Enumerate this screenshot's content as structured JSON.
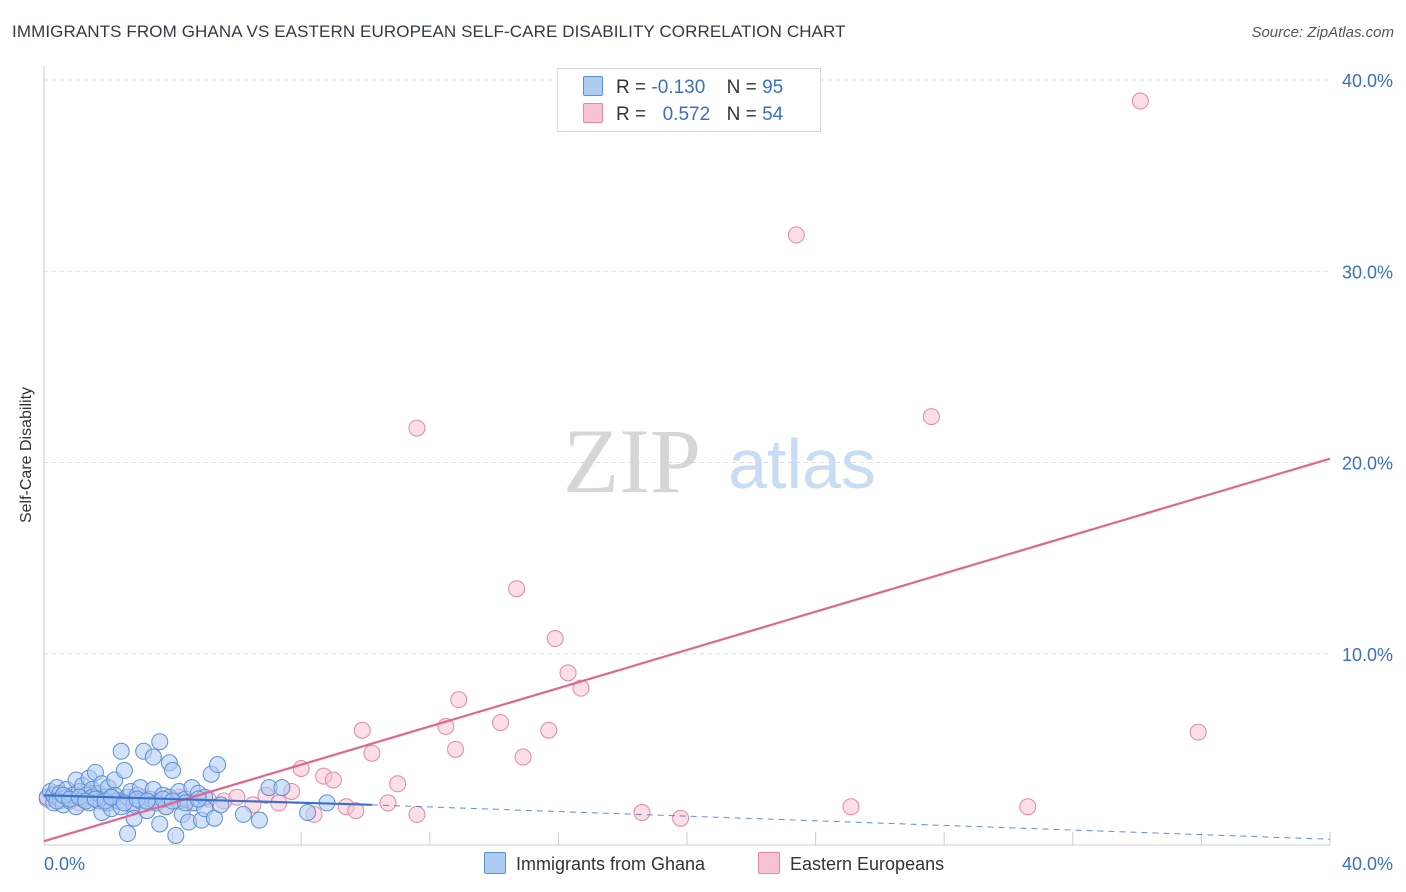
{
  "title": "IMMIGRANTS FROM GHANA VS EASTERN EUROPEAN SELF-CARE DISABILITY CORRELATION CHART",
  "source": "Source: ZipAtlas.com",
  "watermark": {
    "zip": "ZIP",
    "atlas": "atlas"
  },
  "colors": {
    "blue_fill": "#aecbf2",
    "blue_stroke": "#5b8fd6",
    "blue_line": "#3a72cc",
    "pink_fill": "#f7c3d2",
    "pink_stroke": "#e08aa6",
    "pink_line": "#e0668f",
    "axis_text": "#3a6fc8",
    "grid": "#dddddd"
  },
  "legend": {
    "r_label": "R =",
    "n_label": "N =",
    "rows": [
      {
        "r_value": "-0.130",
        "n_value": "95",
        "series": "blue"
      },
      {
        "r_value": "0.572",
        "n_value": "54",
        "series": "pink"
      }
    ]
  },
  "bottom_legend": {
    "ghana": "Immigrants from Ghana",
    "eastern": "Eastern Europeans"
  },
  "chart_data": {
    "type": "scatter",
    "title": "IMMIGRANTS FROM GHANA VS EASTERN EUROPEAN SELF-CARE DISABILITY CORRELATION CHART",
    "xlabel": "",
    "ylabel": "Self-Care Disability",
    "xlim": [
      0,
      40
    ],
    "ylim": [
      0,
      40
    ],
    "x_tick_labels": [
      "0.0%",
      "40.0%"
    ],
    "y_ticks": [
      10,
      20,
      30,
      40
    ],
    "y_tick_labels": [
      "10.0%",
      "20.0%",
      "30.0%",
      "40.0%"
    ],
    "grid": true,
    "series": [
      {
        "name": "Immigrants from Ghana",
        "color": "blue",
        "r": -0.13,
        "n": 95,
        "trend": {
          "x0": 0.0,
          "y0": 2.6,
          "x1": 10.2,
          "y1": 2.1,
          "dashed_to_x": 40.0,
          "dashed_to_y": 0.3
        },
        "points": [
          [
            0.1,
            2.5
          ],
          [
            0.2,
            2.8
          ],
          [
            0.3,
            2.2
          ],
          [
            0.3,
            2.6
          ],
          [
            0.4,
            3.0
          ],
          [
            0.5,
            2.4
          ],
          [
            0.5,
            2.7
          ],
          [
            0.6,
            2.1
          ],
          [
            0.7,
            2.9
          ],
          [
            0.7,
            2.5
          ],
          [
            0.8,
            2.3
          ],
          [
            0.9,
            2.6
          ],
          [
            1.0,
            3.4
          ],
          [
            1.0,
            2.0
          ],
          [
            1.1,
            2.8
          ],
          [
            1.2,
            2.4
          ],
          [
            1.2,
            3.1
          ],
          [
            1.3,
            2.6
          ],
          [
            1.4,
            2.2
          ],
          [
            1.4,
            3.5
          ],
          [
            1.5,
            2.9
          ],
          [
            1.5,
            2.5
          ],
          [
            1.6,
            3.8
          ],
          [
            1.7,
            2.3
          ],
          [
            1.7,
            2.7
          ],
          [
            1.8,
            3.2
          ],
          [
            1.8,
            1.7
          ],
          [
            1.9,
            2.5
          ],
          [
            2.0,
            3.0
          ],
          [
            2.0,
            2.2
          ],
          [
            2.1,
            1.9
          ],
          [
            2.2,
            2.6
          ],
          [
            2.2,
            3.4
          ],
          [
            2.3,
            2.3
          ],
          [
            2.4,
            4.9
          ],
          [
            2.4,
            2.0
          ],
          [
            2.5,
            3.9
          ],
          [
            2.6,
            2.5
          ],
          [
            2.6,
            0.6
          ],
          [
            2.7,
            2.8
          ],
          [
            2.8,
            2.1
          ],
          [
            2.8,
            1.4
          ],
          [
            2.9,
            2.6
          ],
          [
            3.0,
            3.0
          ],
          [
            3.0,
            2.3
          ],
          [
            3.1,
            4.9
          ],
          [
            3.2,
            1.8
          ],
          [
            3.3,
            2.4
          ],
          [
            3.4,
            4.6
          ],
          [
            3.4,
            2.9
          ],
          [
            3.5,
            2.2
          ],
          [
            3.6,
            5.4
          ],
          [
            3.6,
            1.1
          ],
          [
            3.7,
            2.6
          ],
          [
            3.8,
            2.0
          ],
          [
            3.9,
            4.3
          ],
          [
            3.9,
            2.5
          ],
          [
            4.0,
            3.9
          ],
          [
            4.1,
            0.5
          ],
          [
            4.2,
            2.3
          ],
          [
            4.2,
            2.8
          ],
          [
            4.3,
            1.6
          ],
          [
            4.4,
            2.4
          ],
          [
            4.5,
            1.2
          ],
          [
            4.6,
            3.0
          ],
          [
            4.7,
            2.2
          ],
          [
            4.8,
            2.7
          ],
          [
            4.9,
            1.3
          ],
          [
            5.0,
            2.5
          ],
          [
            5.0,
            1.9
          ],
          [
            5.2,
            3.7
          ],
          [
            5.3,
            1.4
          ],
          [
            5.4,
            4.2
          ],
          [
            5.5,
            2.1
          ],
          [
            6.2,
            1.6
          ],
          [
            6.7,
            1.3
          ],
          [
            7.0,
            3.0
          ],
          [
            7.4,
            3.0
          ],
          [
            8.2,
            1.7
          ],
          [
            8.8,
            2.2
          ],
          [
            0.4,
            2.3
          ],
          [
            0.6,
            2.6
          ],
          [
            0.8,
            2.4
          ],
          [
            1.1,
            2.5
          ],
          [
            1.3,
            2.3
          ],
          [
            1.6,
            2.4
          ],
          [
            1.9,
            2.3
          ],
          [
            2.1,
            2.5
          ],
          [
            2.5,
            2.2
          ],
          [
            2.9,
            2.4
          ],
          [
            3.2,
            2.3
          ],
          [
            3.7,
            2.4
          ],
          [
            4.0,
            2.3
          ],
          [
            4.4,
            2.2
          ],
          [
            4.8,
            2.4
          ]
        ]
      },
      {
        "name": "Eastern Europeans",
        "color": "pink",
        "r": 0.572,
        "n": 54,
        "trend": {
          "x0": 0.0,
          "y0": 0.2,
          "x1": 40.0,
          "y1": 20.2
        },
        "points": [
          [
            0.1,
            2.4
          ],
          [
            0.3,
            2.7
          ],
          [
            0.5,
            2.3
          ],
          [
            0.7,
            2.5
          ],
          [
            0.9,
            2.6
          ],
          [
            1.1,
            2.2
          ],
          [
            1.3,
            2.4
          ],
          [
            1.6,
            2.7
          ],
          [
            1.9,
            2.2
          ],
          [
            2.2,
            2.4
          ],
          [
            2.5,
            2.3
          ],
          [
            2.8,
            2.2
          ],
          [
            3.1,
            2.5
          ],
          [
            3.5,
            2.3
          ],
          [
            3.8,
            2.0
          ],
          [
            4.2,
            2.5
          ],
          [
            4.6,
            2.2
          ],
          [
            5.1,
            2.4
          ],
          [
            5.6,
            2.3
          ],
          [
            6.0,
            2.5
          ],
          [
            6.5,
            2.1
          ],
          [
            6.9,
            2.6
          ],
          [
            7.3,
            2.2
          ],
          [
            7.7,
            2.8
          ],
          [
            8.0,
            4.0
          ],
          [
            8.4,
            1.6
          ],
          [
            8.7,
            3.6
          ],
          [
            9.0,
            3.4
          ],
          [
            9.4,
            2.0
          ],
          [
            9.7,
            1.8
          ],
          [
            9.9,
            6.0
          ],
          [
            10.2,
            4.8
          ],
          [
            10.7,
            2.2
          ],
          [
            11.0,
            3.2
          ],
          [
            11.6,
            1.6
          ],
          [
            11.6,
            21.8
          ],
          [
            12.5,
            6.2
          ],
          [
            12.8,
            5.0
          ],
          [
            12.9,
            7.6
          ],
          [
            14.2,
            6.4
          ],
          [
            14.7,
            13.4
          ],
          [
            14.9,
            4.6
          ],
          [
            15.7,
            6.0
          ],
          [
            15.9,
            10.8
          ],
          [
            16.3,
            9.0
          ],
          [
            16.7,
            8.2
          ],
          [
            18.6,
            1.7
          ],
          [
            19.8,
            1.4
          ],
          [
            23.4,
            31.9
          ],
          [
            25.1,
            2.0
          ],
          [
            27.6,
            22.4
          ],
          [
            30.6,
            2.0
          ],
          [
            34.1,
            38.9
          ],
          [
            35.9,
            5.9
          ]
        ]
      }
    ]
  }
}
